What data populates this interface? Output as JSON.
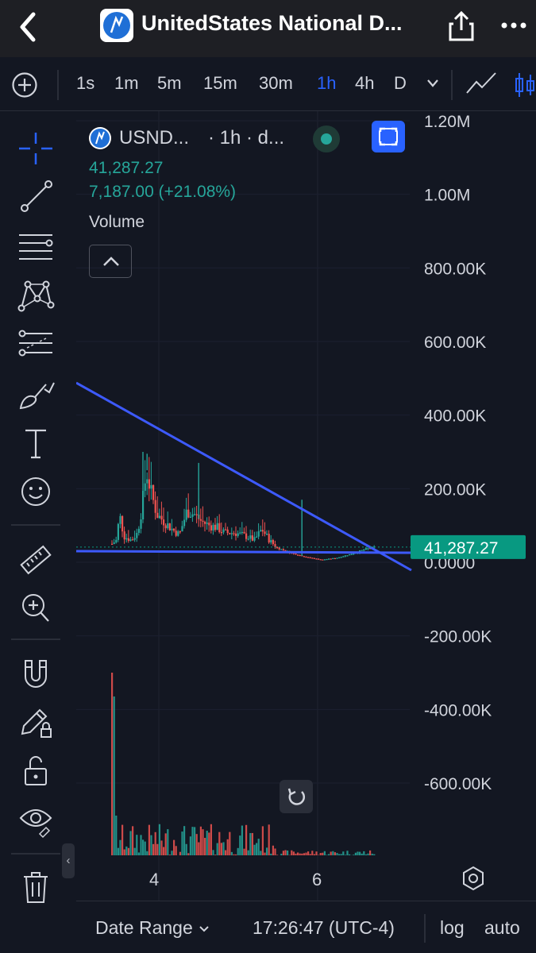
{
  "header": {
    "title": "UnitedStates National D...",
    "back_icon": "chevron-left-icon",
    "share_icon": "share-icon",
    "more_icon": "more-dots-icon"
  },
  "timeframes": {
    "items": [
      "1s",
      "1m",
      "5m",
      "15m",
      "30m",
      "1h",
      "4h",
      "D"
    ],
    "active": "1h"
  },
  "legend": {
    "symbol": "USND...",
    "interval": "· 1h · d...",
    "price": "41,287.27",
    "change": "7,187.00 (+21.08%)",
    "volume_label": "Volume"
  },
  "chart_data": {
    "type": "candlestick",
    "price_axis_ticks": [
      "1.20M",
      "1.00M",
      "800.00K",
      "600.00K",
      "400.00K",
      "200.00K",
      "0.0000",
      "-200.00K",
      "-400.00K",
      "-600.00K"
    ],
    "price_axis_values": [
      1200000,
      1000000,
      800000,
      600000,
      400000,
      200000,
      0,
      -200000,
      -400000,
      -600000
    ],
    "time_ticks": [
      "4",
      "6"
    ],
    "last_price_label": "41,287.27",
    "last_price": 41287.27,
    "colors": {
      "up": "#26a69a",
      "down": "#ef5350",
      "trendline": "#3d5afe",
      "last_price": "#089981"
    },
    "candles_summary": {
      "approx_open_value": 50000,
      "approx_peak_value": 310000,
      "approx_end_value": 41287
    },
    "drawings": [
      {
        "kind": "trend-line",
        "description": "descending resistance"
      },
      {
        "kind": "horizontal-line",
        "description": "support"
      }
    ]
  },
  "footer": {
    "date_range": "Date Range",
    "time": "17:26:47 (UTC-4)",
    "log": "log",
    "auto": "auto"
  }
}
